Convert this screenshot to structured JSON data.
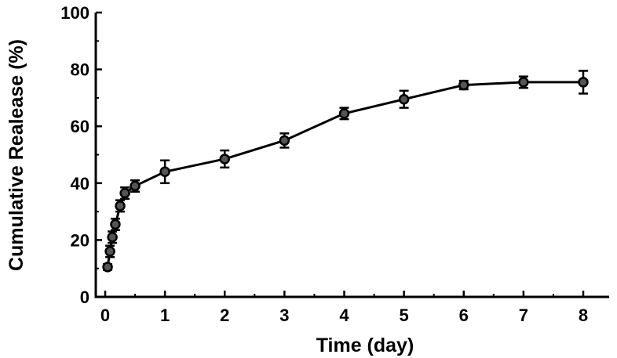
{
  "chart_data": {
    "type": "line",
    "title": "",
    "xlabel": "Time (day)",
    "ylabel": "Cumulative Realease (%)",
    "xlim": [
      0,
      8
    ],
    "ylim": [
      0,
      100
    ],
    "x_ticks": [
      0,
      1,
      2,
      3,
      4,
      5,
      6,
      7,
      8
    ],
    "y_ticks": [
      0,
      20,
      40,
      60,
      80,
      100
    ],
    "x_tick_labels": [
      "0",
      "1",
      "2",
      "3",
      "4",
      "5",
      "6",
      "7",
      "8"
    ],
    "y_tick_labels": [
      "0",
      "20",
      "40",
      "60",
      "80",
      "100"
    ],
    "grid": false,
    "legend": "none",
    "series": [
      {
        "x": [
          0.04,
          0.08,
          0.12,
          0.17,
          0.25,
          0.33,
          0.5,
          1,
          2,
          3,
          4,
          5,
          6,
          7,
          8
        ],
        "y": [
          10.5,
          16,
          21,
          25.5,
          32,
          36.5,
          39,
          44,
          48.5,
          55,
          64.5,
          69.5,
          74.5,
          75.5,
          75.5
        ],
        "error": [
          1,
          2,
          2,
          2,
          2,
          2,
          2,
          4,
          3,
          2.5,
          2,
          3,
          1.5,
          2,
          4
        ],
        "color": "#000000",
        "marker": "circle"
      }
    ]
  }
}
